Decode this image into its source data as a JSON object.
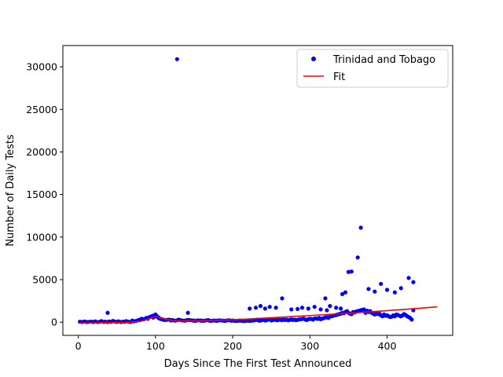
{
  "chart_data": {
    "type": "scatter",
    "xlabel": "Days Since The First Test Announced",
    "ylabel": "Number of Daily Tests",
    "xlim": [
      -20,
      485
    ],
    "ylim": [
      -1550,
      32500
    ],
    "xticks": [
      0,
      100,
      200,
      300,
      400
    ],
    "yticks": [
      0,
      5000,
      10000,
      15000,
      20000,
      25000,
      30000
    ],
    "grid": false,
    "legend": {
      "position": "top-right",
      "entries": [
        "Trinidad and Tobago",
        "Fit"
      ]
    },
    "series": [
      {
        "name": "Trinidad and Tobago",
        "kind": "points",
        "color": "#0000ff",
        "x": [
          2,
          5,
          8,
          10,
          12,
          15,
          18,
          20,
          22,
          25,
          28,
          30,
          33,
          35,
          38,
          40,
          42,
          45,
          48,
          50,
          52,
          55,
          58,
          60,
          62,
          65,
          68,
          70,
          72,
          75,
          78,
          80,
          82,
          85,
          88,
          90,
          92,
          95,
          97,
          98,
          99,
          100,
          101,
          102,
          103,
          104,
          105,
          106,
          108,
          110,
          112,
          115,
          118,
          120,
          122,
          125,
          128,
          130,
          132,
          135,
          138,
          140,
          142,
          145,
          148,
          150,
          152,
          155,
          158,
          160,
          162,
          165,
          168,
          170,
          172,
          175,
          178,
          180,
          182,
          185,
          188,
          190,
          192,
          195,
          198,
          200,
          202,
          205,
          208,
          210,
          212,
          215,
          218,
          220,
          222,
          224,
          226,
          228,
          230,
          232,
          234,
          236,
          238,
          240,
          242,
          244,
          246,
          248,
          250,
          252,
          254,
          256,
          258,
          260,
          262,
          264,
          266,
          268,
          270,
          272,
          274,
          276,
          278,
          280,
          282,
          284,
          286,
          288,
          290,
          292,
          294,
          296,
          298,
          300,
          302,
          304,
          306,
          308,
          310,
          312,
          314,
          316,
          318,
          320,
          322,
          324,
          326,
          328,
          330,
          332,
          334,
          336,
          338,
          340,
          342,
          344,
          346,
          348,
          350,
          352,
          354,
          356,
          358,
          360,
          362,
          364,
          366,
          368,
          370,
          372,
          374,
          376,
          378,
          380,
          382,
          384,
          386,
          388,
          390,
          392,
          394,
          396,
          398,
          400,
          402,
          404,
          406,
          408,
          410,
          412,
          414,
          416,
          418,
          420,
          422,
          424,
          426,
          428,
          430,
          432,
          434,
          38,
          104,
          108,
          128,
          142,
          222,
          230,
          236,
          242,
          248,
          256,
          264,
          276,
          284,
          290,
          298,
          306,
          314,
          320,
          326,
          334,
          342,
          346,
          350,
          354,
          362,
          366,
          376,
          384,
          392,
          400,
          410,
          418,
          428,
          434,
          322,
          340
        ],
        "y": [
          50,
          20,
          80,
          30,
          10,
          60,
          40,
          20,
          90,
          10,
          50,
          120,
          30,
          60,
          20,
          80,
          40,
          150,
          60,
          30,
          100,
          20,
          70,
          40,
          120,
          60,
          30,
          200,
          100,
          150,
          250,
          300,
          400,
          350,
          500,
          400,
          600,
          700,
          550,
          800,
          650,
          900,
          750,
          700,
          600,
          500,
          450,
          400,
          350,
          300,
          250,
          280,
          300,
          200,
          250,
          180,
          220,
          300,
          250,
          200,
          180,
          220,
          260,
          240,
          200,
          180,
          150,
          220,
          200,
          180,
          160,
          200,
          250,
          180,
          150,
          200,
          180,
          160,
          220,
          200,
          180,
          150,
          200,
          230,
          180,
          200,
          160,
          140,
          180,
          200,
          150,
          130,
          170,
          200,
          150,
          180,
          200,
          220,
          260,
          300,
          180,
          200,
          250,
          280,
          200,
          240,
          300,
          350,
          200,
          250,
          300,
          260,
          220,
          300,
          280,
          240,
          320,
          260,
          300,
          220,
          280,
          330,
          260,
          300,
          240,
          280,
          320,
          350,
          380,
          420,
          300,
          260,
          350,
          400,
          380,
          300,
          420,
          450,
          380,
          500,
          350,
          420,
          480,
          550,
          600,
          500,
          650,
          700,
          750,
          800,
          850,
          900,
          950,
          1000,
          1100,
          1050,
          1200,
          1300,
          1100,
          1000,
          950,
          1200,
          1150,
          1250,
          1300,
          1350,
          1400,
          1450,
          1500,
          1100,
          1350,
          1200,
          1300,
          1100,
          1000,
          900,
          1050,
          950,
          1000,
          800,
          700,
          900,
          750,
          800,
          700,
          600,
          650,
          800,
          700,
          900,
          850,
          750,
          700,
          800,
          950,
          850,
          700,
          600,
          500,
          300,
          1400,
          1100,
          550,
          350,
          30900,
          1100,
          1600,
          1700,
          1900,
          1600,
          1800,
          1700,
          2800,
          1500,
          1550,
          1700,
          1600,
          1800,
          1500,
          2800,
          1900,
          1700,
          3300,
          3500,
          5900,
          5950,
          7600,
          11100,
          3900,
          3600,
          4500,
          3800,
          3500,
          4000,
          5200,
          4700,
          1400,
          1600
        ]
      },
      {
        "name": "Fit",
        "kind": "line",
        "color": "#ff0000",
        "x": [
          0,
          20,
          40,
          60,
          80,
          90,
          100,
          105,
          110,
          120,
          130,
          140,
          160,
          200,
          250,
          300,
          350,
          400,
          465
        ],
        "y": [
          -100,
          -80,
          -60,
          -30,
          80,
          350,
          650,
          600,
          430,
          220,
          150,
          160,
          180,
          280,
          520,
          780,
          1050,
          1350,
          1800
        ]
      }
    ]
  }
}
